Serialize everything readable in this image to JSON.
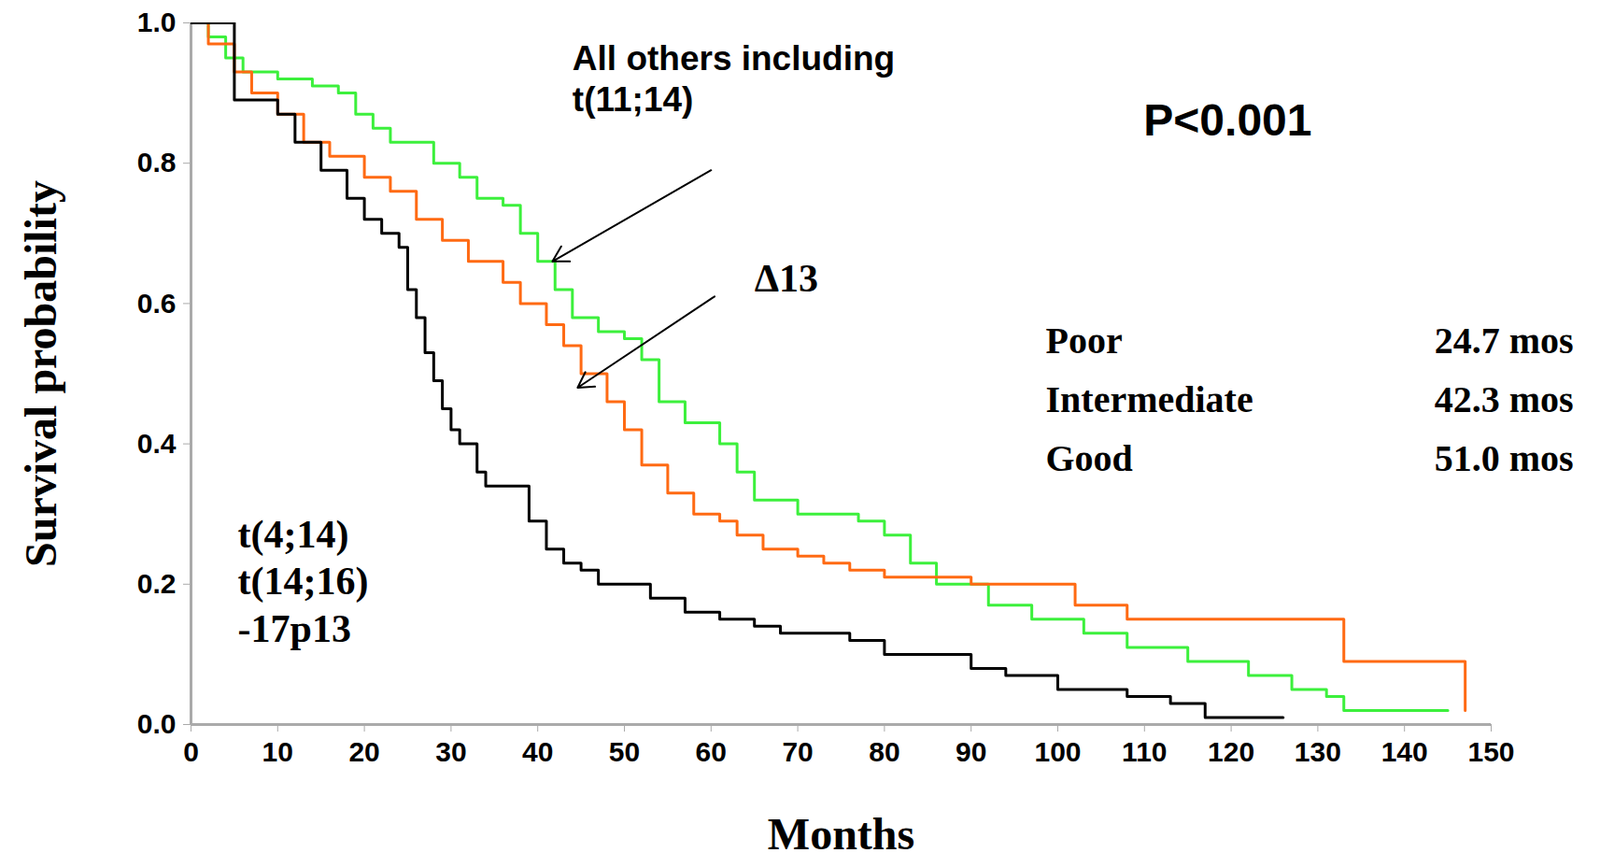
{
  "chart_data": {
    "type": "line",
    "x_label": "Months",
    "y_label": "Survival probability",
    "xlim": [
      0,
      150
    ],
    "ylim": [
      0,
      1.0
    ],
    "xticks": [
      0,
      10,
      20,
      30,
      40,
      50,
      60,
      70,
      80,
      90,
      100,
      110,
      120,
      130,
      140,
      150
    ],
    "yticks": [
      {
        "value": 0,
        "label": "0.0"
      },
      {
        "value": 0.2,
        "label": "0.2"
      },
      {
        "value": 0.4,
        "label": "0.4"
      },
      {
        "value": 0.6,
        "label": "0.6"
      },
      {
        "value": 0.8,
        "label": "0.8"
      },
      {
        "value": 1.0,
        "label": "1.0"
      }
    ],
    "line_style": "step",
    "grid": false,
    "p_value": "P<0.001",
    "median_table": [
      [
        "Poor",
        "24.7 mos"
      ],
      [
        "Intermediate",
        "42.3 mos"
      ],
      [
        "Good",
        "51.0 mos"
      ]
    ],
    "series": [
      {
        "name": "All others including t(11;14)",
        "color": "#3cf03c",
        "x": [
          0,
          2,
          4,
          6,
          10,
          14,
          17,
          19,
          21,
          23,
          28,
          31,
          33,
          36,
          38,
          40,
          42,
          44,
          47,
          50,
          52,
          54,
          57,
          61,
          63,
          65,
          70,
          77,
          80,
          83,
          86,
          92,
          97,
          103,
          108,
          115,
          122,
          127,
          131,
          133,
          145
        ],
        "values": [
          1.0,
          0.98,
          0.95,
          0.93,
          0.92,
          0.91,
          0.9,
          0.87,
          0.85,
          0.83,
          0.8,
          0.78,
          0.75,
          0.74,
          0.7,
          0.66,
          0.62,
          0.58,
          0.56,
          0.55,
          0.52,
          0.46,
          0.43,
          0.4,
          0.36,
          0.32,
          0.3,
          0.29,
          0.27,
          0.23,
          0.2,
          0.17,
          0.15,
          0.13,
          0.11,
          0.09,
          0.07,
          0.05,
          0.04,
          0.02,
          0.02
        ]
      },
      {
        "name": "Δ13",
        "color": "#ff6a13",
        "x": [
          0,
          2,
          5,
          7,
          10,
          13,
          16,
          20,
          23,
          26,
          29,
          32,
          36,
          38,
          41,
          43,
          45,
          48,
          50,
          52,
          55,
          58,
          61,
          63,
          66,
          70,
          73,
          76,
          80,
          90,
          102,
          108,
          133,
          147,
          147
        ],
        "values": [
          1.0,
          0.97,
          0.93,
          0.9,
          0.87,
          0.83,
          0.81,
          0.78,
          0.76,
          0.72,
          0.69,
          0.66,
          0.63,
          0.6,
          0.57,
          0.54,
          0.5,
          0.46,
          0.42,
          0.37,
          0.33,
          0.3,
          0.29,
          0.27,
          0.25,
          0.24,
          0.23,
          0.22,
          0.21,
          0.2,
          0.17,
          0.15,
          0.09,
          0.09,
          0.02
        ]
      },
      {
        "name": "t(4;14) t(14;16) -17p13",
        "color": "#000000",
        "x": [
          0,
          5,
          10,
          12,
          15,
          18,
          20,
          22,
          24,
          25,
          26,
          27,
          28,
          29,
          30,
          31,
          33,
          34,
          39,
          41,
          43,
          45,
          47,
          53,
          57,
          61,
          65,
          68,
          76,
          80,
          90,
          94,
          100,
          108,
          113,
          117,
          126
        ],
        "values": [
          1.0,
          0.89,
          0.87,
          0.83,
          0.79,
          0.75,
          0.72,
          0.7,
          0.68,
          0.62,
          0.58,
          0.53,
          0.49,
          0.45,
          0.42,
          0.4,
          0.36,
          0.34,
          0.29,
          0.25,
          0.23,
          0.22,
          0.2,
          0.18,
          0.16,
          0.15,
          0.14,
          0.13,
          0.12,
          0.1,
          0.08,
          0.07,
          0.05,
          0.04,
          0.03,
          0.01,
          0.01
        ]
      }
    ]
  }
}
